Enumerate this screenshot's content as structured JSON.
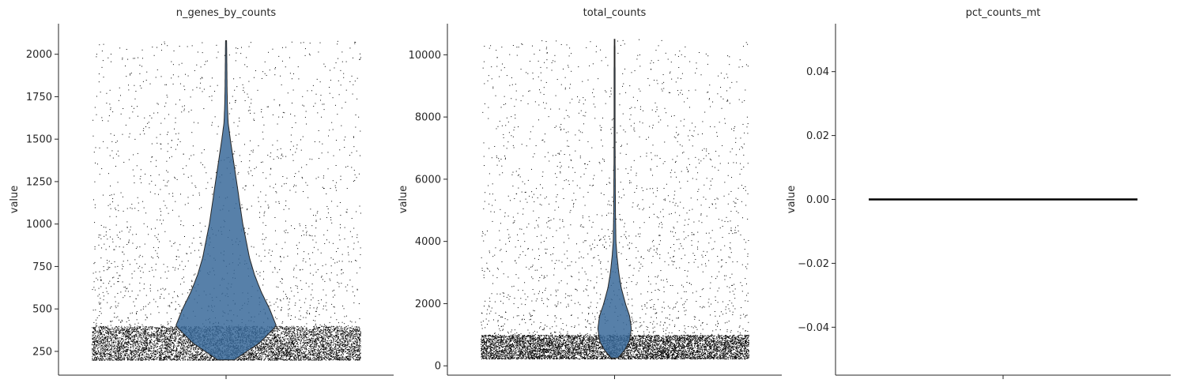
{
  "chart_data": [
    {
      "type": "violin",
      "title": "n_genes_by_counts",
      "xlabel": "",
      "ylabel": "value",
      "ylim": [
        110,
        2180
      ],
      "yticks": [
        250,
        500,
        750,
        1000,
        1250,
        1500,
        1750,
        2000
      ],
      "ytick_labels": [
        "250",
        "500",
        "750",
        "1000",
        "1250",
        "1500",
        "1750",
        "2000"
      ],
      "jitter_points": true,
      "point_color": "#000000",
      "violin_color": "#3a6a9a",
      "points": {
        "min": 200,
        "max": 2080,
        "count": 9000,
        "dense_max": 400
      },
      "violin_profile": {
        "y": [
          200,
          300,
          400,
          500,
          600,
          700,
          800,
          900,
          1000,
          1100,
          1200,
          1300,
          1400,
          1500,
          1600,
          1700,
          1800,
          1900,
          2000,
          2080
        ],
        "halfwidth": [
          0.05,
          0.2,
          0.3,
          0.26,
          0.21,
          0.17,
          0.14,
          0.12,
          0.1,
          0.085,
          0.07,
          0.055,
          0.04,
          0.025,
          0.012,
          0.008,
          0.006,
          0.005,
          0.004,
          0.003
        ]
      }
    },
    {
      "type": "violin",
      "title": "total_counts",
      "xlabel": "",
      "ylabel": "value",
      "ylim": [
        -300,
        11000
      ],
      "yticks": [
        0,
        2000,
        4000,
        6000,
        8000,
        10000
      ],
      "ytick_labels": [
        "0",
        "2000",
        "4000",
        "6000",
        "8000",
        "10000"
      ],
      "jitter_points": true,
      "point_color": "#000000",
      "violin_color": "#3a6a9a",
      "points": {
        "min": 230,
        "max": 10500,
        "count": 9000,
        "dense_max": 1000
      },
      "violin_profile": {
        "y": [
          250,
          500,
          800,
          1200,
          1600,
          2000,
          2500,
          3000,
          3500,
          4000,
          5000,
          6000,
          7000,
          8000,
          9000,
          10500
        ],
        "halfwidth": [
          0.02,
          0.06,
          0.09,
          0.1,
          0.09,
          0.065,
          0.04,
          0.025,
          0.015,
          0.008,
          0.005,
          0.004,
          0.003,
          0.003,
          0.003,
          0.002
        ]
      }
    },
    {
      "type": "violin",
      "title": "pct_counts_mt",
      "xlabel": "",
      "ylabel": "value",
      "ylim": [
        -0.055,
        0.055
      ],
      "yticks": [
        -0.04,
        -0.02,
        0.0,
        0.02,
        0.04
      ],
      "ytick_labels": [
        "−0.04",
        "−0.02",
        "0.00",
        "0.02",
        "0.04"
      ],
      "jitter_points": true,
      "point_color": "#000000",
      "constant_value": 0.0
    }
  ]
}
